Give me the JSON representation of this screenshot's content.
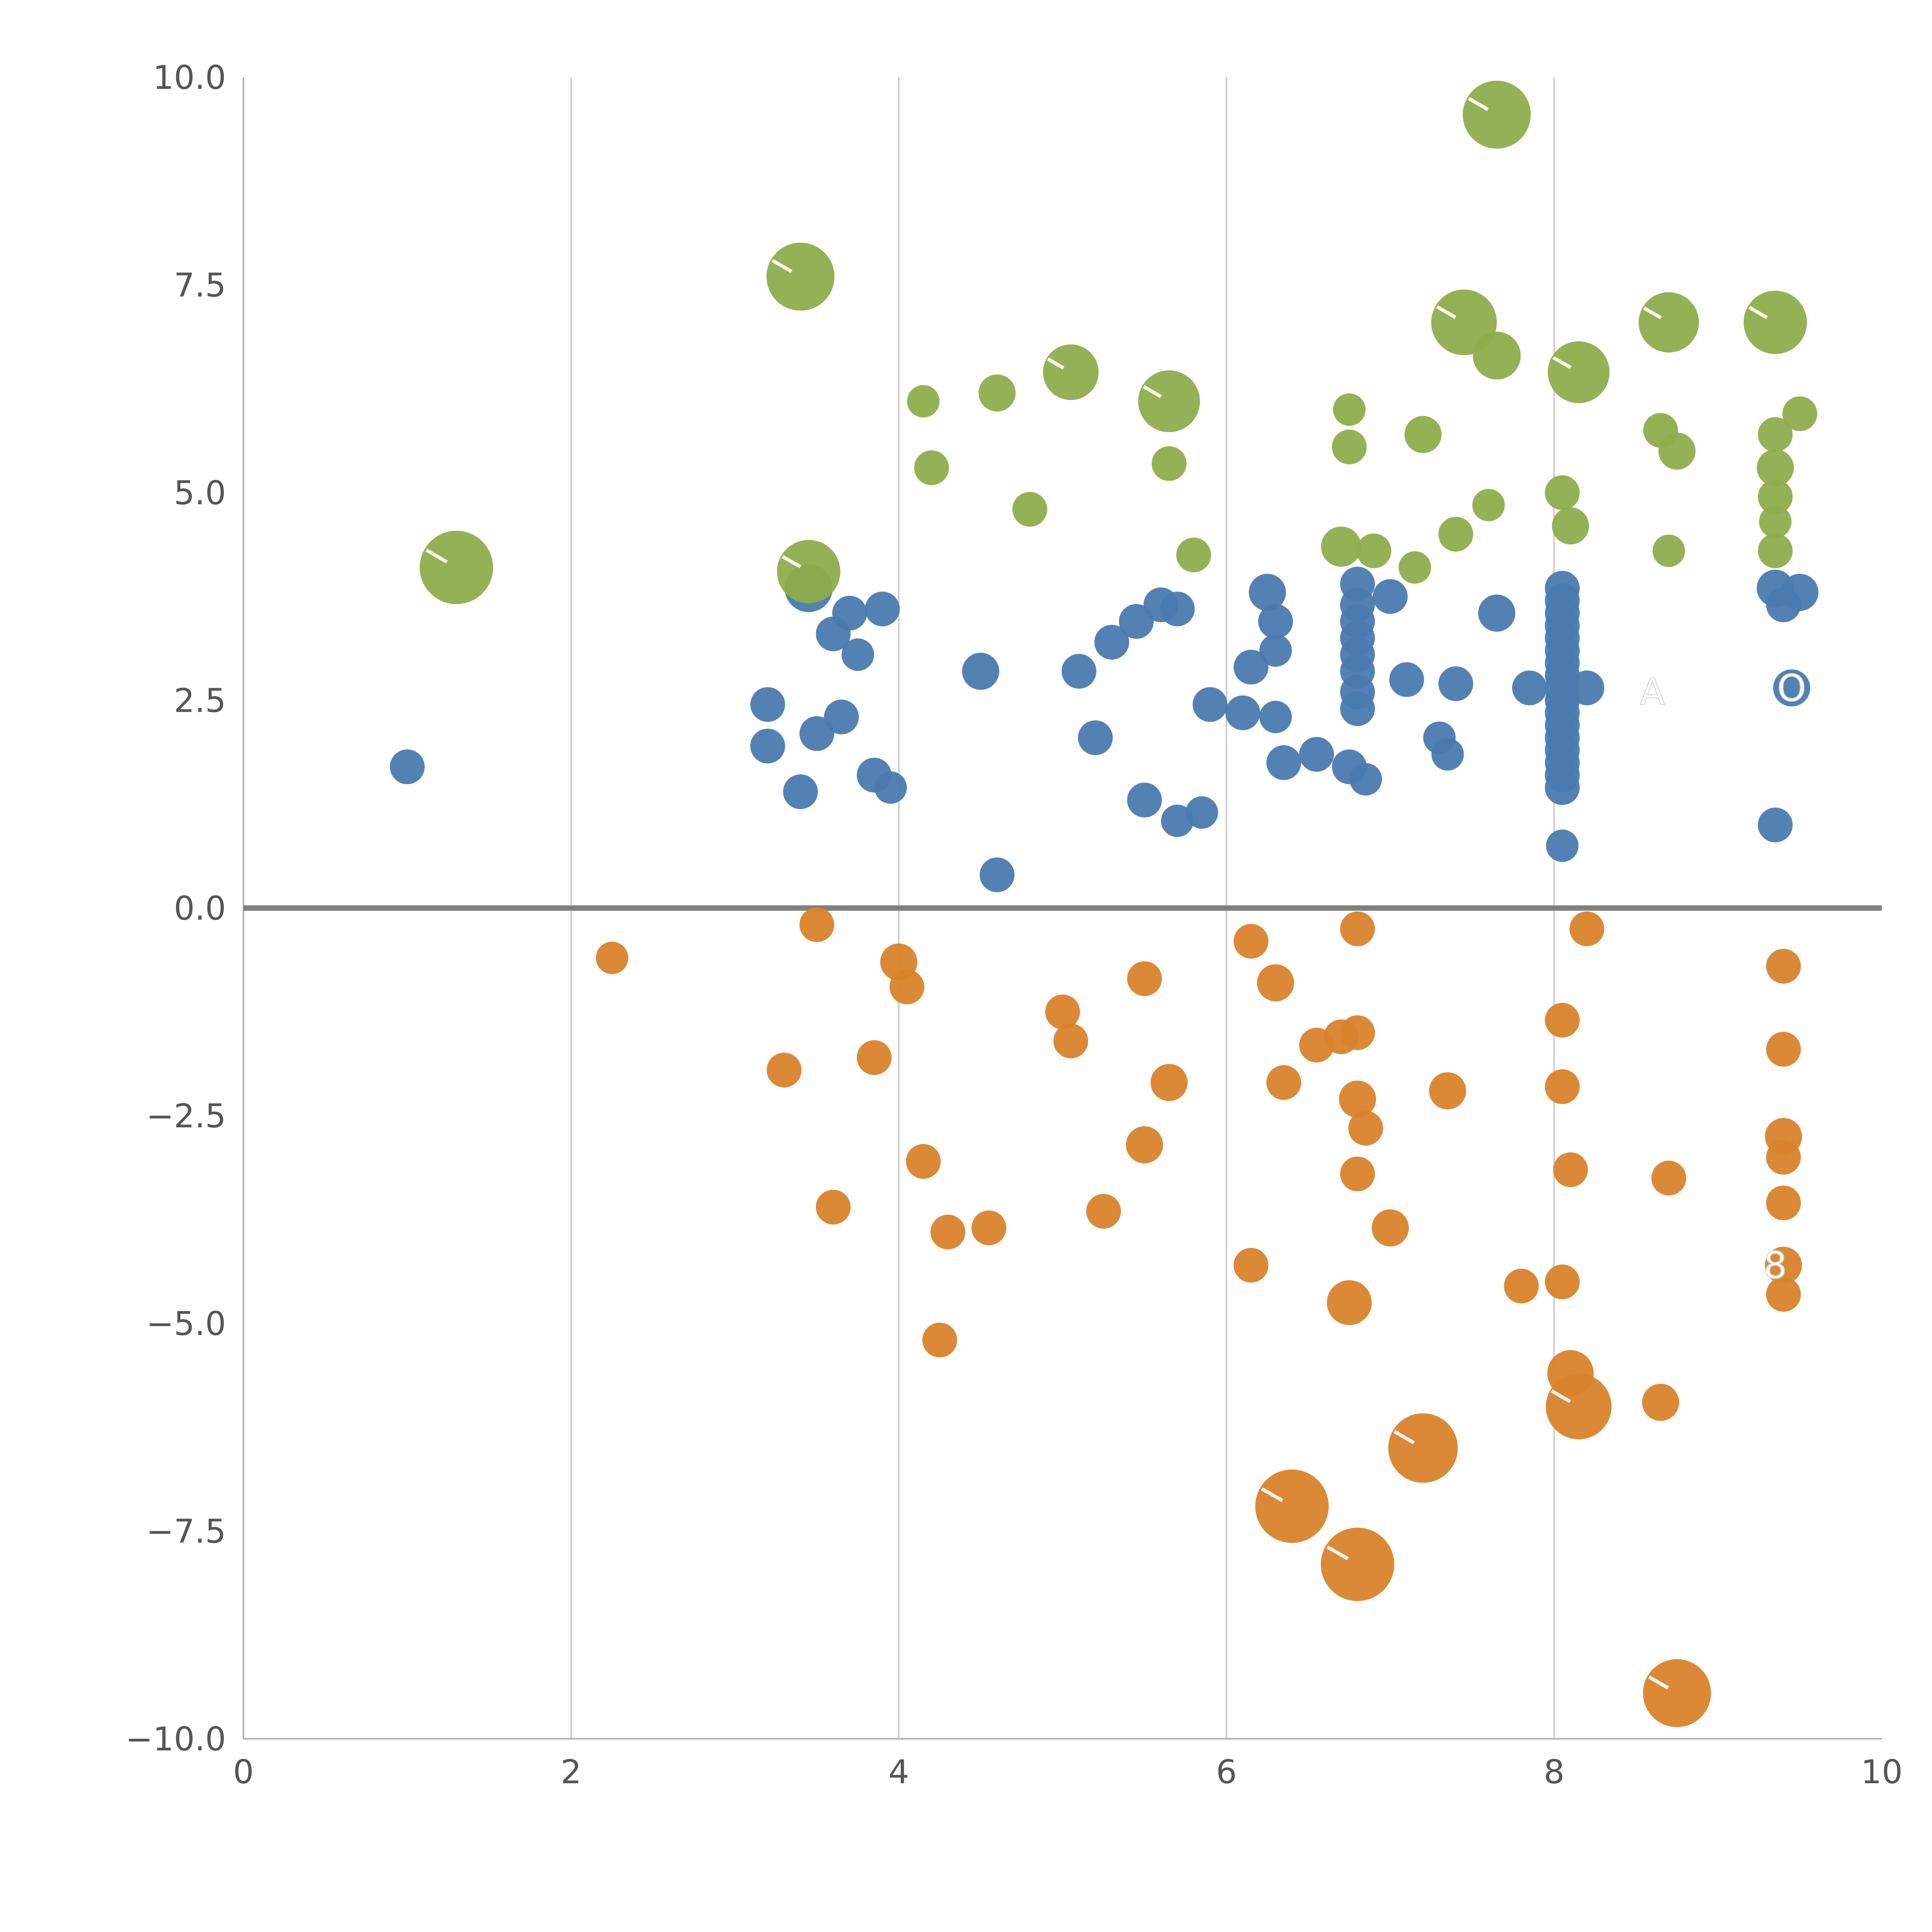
{
  "chart_data": {
    "type": "scatter",
    "title": "",
    "xlabel": "",
    "ylabel": "",
    "xlim": [
      0,
      10
    ],
    "ylim": [
      -10,
      10
    ],
    "grid": true,
    "legend_position": "none",
    "x_tick_values": [
      0,
      2,
      4,
      6,
      8,
      10
    ],
    "x_tick_labels": [
      "0",
      "2",
      "4",
      "6",
      "8",
      "10"
    ],
    "y_tick_values": [
      -10,
      -7.5,
      -5,
      -2.5,
      0,
      2.5,
      5,
      7.5,
      10
    ],
    "y_tick_labels": [
      "−10.0",
      "−7.5",
      "−5.0",
      "−2.5",
      "0.0",
      "2.5",
      "5.0",
      "7.5",
      "10.0"
    ],
    "x_gridlines": [
      2,
      4,
      6,
      8
    ],
    "zero_line_y": 0,
    "colors": {
      "blue": "#4a7ab0",
      "orange": "#d9832c",
      "green": "#8fad4c",
      "grid": "#cccccc",
      "spine": "#b0b0b0",
      "zero_line": "#808080",
      "tick_label": "#555555",
      "annotation": "#ffffff",
      "bubble_tick": "#ffffff"
    },
    "series": [
      {
        "name": "blue",
        "color_key": "blue",
        "points": [
          [
            1.0,
            1.7,
            45
          ],
          [
            3.2,
            2.45,
            45
          ],
          [
            3.2,
            1.95,
            45
          ],
          [
            3.45,
            3.85,
            62
          ],
          [
            3.4,
            1.4,
            45
          ],
          [
            3.5,
            2.1,
            45
          ],
          [
            3.65,
            2.3,
            45
          ],
          [
            3.6,
            3.3,
            45
          ],
          [
            3.7,
            3.55,
            45
          ],
          [
            3.75,
            3.05,
            42
          ],
          [
            3.9,
            3.6,
            45
          ],
          [
            3.85,
            1.6,
            45
          ],
          [
            3.95,
            1.45,
            42
          ],
          [
            4.5,
            2.85,
            48
          ],
          [
            4.6,
            0.4,
            45
          ],
          [
            5.1,
            2.85,
            45
          ],
          [
            5.2,
            2.05,
            45
          ],
          [
            5.3,
            3.2,
            45
          ],
          [
            5.45,
            3.45,
            45
          ],
          [
            5.6,
            3.65,
            45
          ],
          [
            5.5,
            1.3,
            45
          ],
          [
            5.7,
            3.6,
            45
          ],
          [
            5.7,
            1.05,
            42
          ],
          [
            5.85,
            1.15,
            42
          ],
          [
            5.9,
            2.45,
            45
          ],
          [
            6.1,
            2.35,
            45
          ],
          [
            6.15,
            2.9,
            45
          ],
          [
            6.25,
            3.8,
            48
          ],
          [
            6.3,
            3.45,
            45
          ],
          [
            6.3,
            3.1,
            42
          ],
          [
            6.3,
            2.3,
            42
          ],
          [
            6.35,
            1.75,
            45
          ],
          [
            6.55,
            1.85,
            45
          ],
          [
            6.75,
            1.7,
            45
          ],
          [
            6.8,
            3.9,
            45
          ],
          [
            6.8,
            3.65,
            45
          ],
          [
            6.8,
            3.45,
            45
          ],
          [
            6.8,
            3.25,
            45
          ],
          [
            6.8,
            3.05,
            45
          ],
          [
            6.8,
            2.85,
            45
          ],
          [
            6.8,
            2.6,
            45
          ],
          [
            6.8,
            2.4,
            45
          ],
          [
            6.85,
            1.55,
            42
          ],
          [
            7.0,
            3.75,
            45
          ],
          [
            7.1,
            2.75,
            45
          ],
          [
            7.3,
            2.05,
            42
          ],
          [
            7.35,
            1.85,
            42
          ],
          [
            7.4,
            2.7,
            45
          ],
          [
            7.65,
            3.55,
            48
          ],
          [
            7.85,
            2.65,
            45
          ],
          [
            8.05,
            3.85,
            45
          ],
          [
            8.05,
            3.7,
            45
          ],
          [
            8.05,
            3.55,
            45
          ],
          [
            8.05,
            3.4,
            45
          ],
          [
            8.05,
            3.25,
            45
          ],
          [
            8.05,
            3.1,
            45
          ],
          [
            8.05,
            2.95,
            45
          ],
          [
            8.05,
            2.8,
            45
          ],
          [
            8.05,
            2.65,
            45
          ],
          [
            8.05,
            2.5,
            45
          ],
          [
            8.05,
            2.35,
            45
          ],
          [
            8.05,
            2.2,
            45
          ],
          [
            8.05,
            2.05,
            45
          ],
          [
            8.05,
            1.9,
            45
          ],
          [
            8.05,
            1.75,
            45
          ],
          [
            8.05,
            1.6,
            45
          ],
          [
            8.05,
            1.45,
            45
          ],
          [
            8.05,
            0.75,
            42
          ],
          [
            8.2,
            2.65,
            45
          ],
          [
            9.35,
            3.85,
            48
          ],
          [
            9.5,
            3.8,
            48
          ],
          [
            9.4,
            3.65,
            45
          ],
          [
            9.45,
            2.65,
            48
          ],
          [
            9.35,
            1.0,
            45
          ]
        ]
      },
      {
        "name": "orange",
        "color_key": "orange",
        "points": [
          [
            2.25,
            -0.6,
            42
          ],
          [
            3.3,
            -1.95,
            45
          ],
          [
            3.5,
            -0.2,
            45
          ],
          [
            3.6,
            -3.6,
            45
          ],
          [
            3.85,
            -1.8,
            45
          ],
          [
            4.0,
            -0.65,
            48
          ],
          [
            4.05,
            -0.95,
            45
          ],
          [
            4.15,
            -3.05,
            45
          ],
          [
            4.3,
            -3.9,
            45
          ],
          [
            4.25,
            -5.2,
            45
          ],
          [
            4.55,
            -3.85,
            45
          ],
          [
            5.0,
            -1.25,
            45
          ],
          [
            5.05,
            -1.6,
            45
          ],
          [
            5.25,
            -3.65,
            45
          ],
          [
            5.5,
            -0.85,
            45
          ],
          [
            5.5,
            -2.85,
            48
          ],
          [
            5.65,
            -2.1,
            48
          ],
          [
            6.15,
            -0.4,
            45
          ],
          [
            6.15,
            -4.3,
            45
          ],
          [
            6.3,
            -0.9,
            48
          ],
          [
            6.35,
            -2.1,
            45
          ],
          [
            6.55,
            -1.65,
            45
          ],
          [
            6.7,
            -1.55,
            45
          ],
          [
            6.8,
            -0.25,
            45
          ],
          [
            6.8,
            -1.5,
            45
          ],
          [
            6.8,
            -2.3,
            48
          ],
          [
            6.85,
            -2.65,
            45
          ],
          [
            6.8,
            -3.2,
            45
          ],
          [
            6.75,
            -4.75,
            58
          ],
          [
            6.4,
            -7.2,
            95
          ],
          [
            6.8,
            -7.9,
            95
          ],
          [
            7.0,
            -3.85,
            48
          ],
          [
            7.2,
            -6.5,
            90
          ],
          [
            7.35,
            -2.2,
            48
          ],
          [
            7.8,
            -4.55,
            45
          ],
          [
            8.05,
            -4.5,
            45
          ],
          [
            8.05,
            -1.35,
            45
          ],
          [
            8.05,
            -2.15,
            45
          ],
          [
            8.1,
            -3.15,
            45
          ],
          [
            8.2,
            -0.25,
            45
          ],
          [
            8.1,
            -5.6,
            60
          ],
          [
            8.15,
            -6.0,
            85
          ],
          [
            8.7,
            -3.25,
            45
          ],
          [
            8.65,
            -5.95,
            48
          ],
          [
            8.75,
            -9.45,
            88
          ],
          [
            9.4,
            -0.7,
            45
          ],
          [
            9.4,
            -1.7,
            45
          ],
          [
            9.4,
            -2.75,
            48
          ],
          [
            9.4,
            -3.0,
            45
          ],
          [
            9.4,
            -3.55,
            45
          ],
          [
            9.4,
            -4.3,
            48
          ],
          [
            9.4,
            -4.65,
            45
          ]
        ]
      },
      {
        "name": "green",
        "color_key": "green",
        "points": [
          [
            1.3,
            4.1,
            95
          ],
          [
            3.4,
            7.6,
            88
          ],
          [
            3.45,
            4.05,
            82
          ],
          [
            4.15,
            6.1,
            42
          ],
          [
            4.2,
            5.3,
            45
          ],
          [
            4.6,
            6.2,
            48
          ],
          [
            4.8,
            4.8,
            45
          ],
          [
            5.05,
            6.45,
            72
          ],
          [
            5.65,
            6.1,
            80
          ],
          [
            5.65,
            5.35,
            45
          ],
          [
            5.8,
            4.25,
            45
          ],
          [
            6.75,
            6.0,
            42
          ],
          [
            6.75,
            5.55,
            45
          ],
          [
            6.7,
            4.35,
            52
          ],
          [
            6.9,
            4.3,
            45
          ],
          [
            7.2,
            5.7,
            48
          ],
          [
            7.15,
            4.1,
            42
          ],
          [
            7.4,
            4.5,
            45
          ],
          [
            7.45,
            7.05,
            85
          ],
          [
            7.65,
            6.65,
            62
          ],
          [
            7.65,
            9.55,
            88
          ],
          [
            7.6,
            4.85,
            42
          ],
          [
            8.05,
            5.0,
            45
          ],
          [
            8.1,
            4.6,
            48
          ],
          [
            8.15,
            6.45,
            80
          ],
          [
            8.7,
            7.05,
            78
          ],
          [
            8.65,
            5.75,
            45
          ],
          [
            8.75,
            5.5,
            48
          ],
          [
            8.7,
            4.3,
            42
          ],
          [
            9.35,
            7.05,
            82
          ],
          [
            9.5,
            5.95,
            45
          ],
          [
            9.35,
            5.7,
            45
          ],
          [
            9.35,
            5.3,
            48
          ],
          [
            9.35,
            4.95,
            45
          ],
          [
            9.35,
            4.65,
            42
          ],
          [
            9.35,
            4.3,
            45
          ]
        ]
      }
    ],
    "annotations": [
      {
        "text": "A",
        "x": 8.6,
        "y": 2.6
      },
      {
        "text": "O",
        "x": 9.45,
        "y": 2.65
      },
      {
        "text": "8",
        "x": 9.35,
        "y": -4.3
      }
    ]
  }
}
